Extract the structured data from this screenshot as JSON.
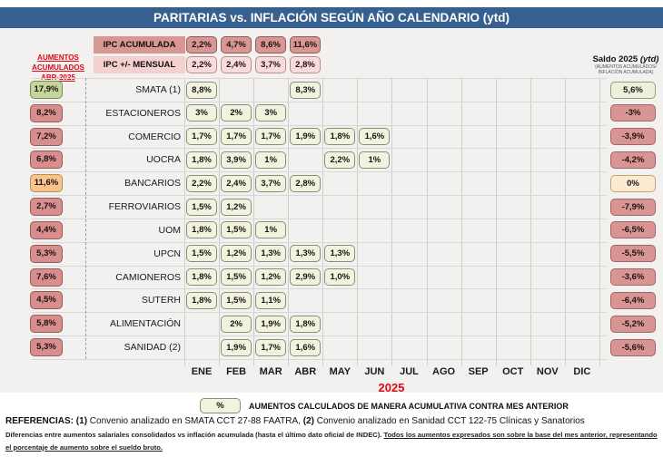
{
  "title": "PARITARIAS vs. INFLACIÓN SEGÚN AÑO CALENDARIO (ytd)",
  "left_header": {
    "line1": "AUMENTOS",
    "line2": "ACUMULADOS",
    "line3": "ABR-2025"
  },
  "ipc": {
    "acumulada": {
      "label": "IPC ACUMULADA",
      "values": [
        "2,2%",
        "4,7%",
        "8,6%",
        "11,6%"
      ]
    },
    "mensual": {
      "label": "IPC +/- MENSUAL",
      "values": [
        "2,2%",
        "2,4%",
        "3,7%",
        "2,8%"
      ]
    }
  },
  "saldo_header": {
    "title_main": "Saldo 2025",
    "title_suffix": "(ytd)",
    "subtitle1": "(AUMENTOS ACUMULADOS/",
    "subtitle2": "INFLACIÓN ACUMULADA)"
  },
  "months": [
    "ENE",
    "FEB",
    "MAR",
    "ABR",
    "MAY",
    "JUN",
    "JUL",
    "AGO",
    "SEP",
    "OCT",
    "NOV",
    "DIC"
  ],
  "year_label": "2025",
  "rows": [
    {
      "name": "SMATA (1)",
      "accum": "17,9%",
      "accum_color": "green",
      "months": [
        "8,8%",
        null,
        null,
        "8,3%",
        null,
        null,
        null,
        null,
        null,
        null,
        null,
        null
      ],
      "saldo": "5,6%",
      "saldo_color": "green"
    },
    {
      "name": "ESTACIONEROS",
      "accum": "8,2%",
      "accum_color": "red",
      "months": [
        "3%",
        "2%",
        "3%",
        null,
        null,
        null,
        null,
        null,
        null,
        null,
        null,
        null
      ],
      "saldo": "-3%",
      "saldo_color": "red"
    },
    {
      "name": "COMERCIO",
      "accum": "7,2%",
      "accum_color": "red",
      "months": [
        "1,7%",
        "1,7%",
        "1,7%",
        "1,9%",
        "1,8%",
        "1,6%",
        null,
        null,
        null,
        null,
        null,
        null
      ],
      "saldo": "-3,9%",
      "saldo_color": "red"
    },
    {
      "name": "UOCRA",
      "accum": "6,8%",
      "accum_color": "red",
      "months": [
        "1,8%",
        "3,9%",
        "1%",
        null,
        "2,2%",
        "1%",
        null,
        null,
        null,
        null,
        null,
        null
      ],
      "saldo": "-4,2%",
      "saldo_color": "red"
    },
    {
      "name": "BANCARIOS",
      "accum": "11,6%",
      "accum_color": "orange",
      "months": [
        "2,2%",
        "2,4%",
        "3,7%",
        "2,8%",
        null,
        null,
        null,
        null,
        null,
        null,
        null,
        null
      ],
      "saldo": "0%",
      "saldo_color": "cream"
    },
    {
      "name": "FERROVIARIOS",
      "accum": "2,7%",
      "accum_color": "red",
      "months": [
        "1,5%",
        "1,2%",
        null,
        null,
        null,
        null,
        null,
        null,
        null,
        null,
        null,
        null
      ],
      "saldo": "-7,9%",
      "saldo_color": "red"
    },
    {
      "name": "UOM",
      "accum": "4,4%",
      "accum_color": "red",
      "months": [
        "1,8%",
        "1,5%",
        "1%",
        null,
        null,
        null,
        null,
        null,
        null,
        null,
        null,
        null
      ],
      "saldo": "-6,5%",
      "saldo_color": "red"
    },
    {
      "name": "UPCN",
      "accum": "5,3%",
      "accum_color": "red",
      "months": [
        "1,5%",
        "1,2%",
        "1,3%",
        "1,3%",
        "1,3%",
        null,
        null,
        null,
        null,
        null,
        null,
        null
      ],
      "saldo": "-5,5%",
      "saldo_color": "red"
    },
    {
      "name": "CAMIONEROS",
      "accum": "7,6%",
      "accum_color": "red",
      "months": [
        "1,8%",
        "1,5%",
        "1,2%",
        "2,9%",
        "1,0%",
        null,
        null,
        null,
        null,
        null,
        null,
        null
      ],
      "saldo": "-3,6%",
      "saldo_color": "red"
    },
    {
      "name": "SUTERH",
      "accum": "4,5%",
      "accum_color": "red",
      "months": [
        "1,8%",
        "1,5%",
        "1,1%",
        null,
        null,
        null,
        null,
        null,
        null,
        null,
        null,
        null
      ],
      "saldo": "-6,4%",
      "saldo_color": "red"
    },
    {
      "name": "ALIMENTACIÓN",
      "accum": "5,8%",
      "accum_color": "red",
      "months": [
        null,
        "2%",
        "1,9%",
        "1,8%",
        null,
        null,
        null,
        null,
        null,
        null,
        null,
        null
      ],
      "saldo": "-5,2%",
      "saldo_color": "red"
    },
    {
      "name": "SANIDAD (2)",
      "accum": "5,3%",
      "accum_color": "red",
      "months": [
        null,
        "1,9%",
        "1,7%",
        "1,6%",
        null,
        null,
        null,
        null,
        null,
        null,
        null,
        null
      ],
      "saldo": "-5,6%",
      "saldo_color": "red"
    }
  ],
  "legend": {
    "symbol": "%",
    "text": "AUMENTOS CALCULADOS DE MANERA ACUMULATIVA CONTRA MES ANTERIOR"
  },
  "references": {
    "label": "REFERENCIAS:",
    "num1": "(1)",
    "part1": " Convenio analizado en SMATA CCT 27-88 FAATRA, ",
    "num2": "(2)",
    "part2": " Convenio analizado en Sanidad CCT 122-75 Clínicas y Sanatorios"
  },
  "fine_print": {
    "segment1": "Diferencias entre aumentos salariales consolidados vs inflación acumulada (hasta el último dato oficial de INDEC). ",
    "segment2": "Todos los aumentos expresados son sobre la base del mes anterior, representando el porcentaje de aumento sobre el sueldo bruto."
  },
  "colors": {
    "title_bar": "#35608f",
    "red_accent_text": "#e30613",
    "ipc_acumulada_chip": "#d89694",
    "ipc_mensual_chip": "#f7dcdb",
    "month_chip": "#f0f3de",
    "negative_chip": "#d88e8c",
    "positive_chip": "#c4d79b",
    "warning_chip": "#fac38b",
    "zero_chip": "#fbebd3"
  },
  "chart_data": {
    "type": "table",
    "title": "PARITARIAS vs. INFLACIÓN SEGÚN AÑO CALENDARIO (ytd)",
    "columns": [
      "ENE",
      "FEB",
      "MAR",
      "ABR",
      "MAY",
      "JUN",
      "JUL",
      "AGO",
      "SEP",
      "OCT",
      "NOV",
      "DIC"
    ],
    "ipc_acumulada_pct": [
      2.2,
      4.7,
      8.6,
      11.6
    ],
    "ipc_mensual_pct": [
      2.2,
      2.4,
      3.7,
      2.8
    ],
    "series": [
      {
        "name": "SMATA",
        "aumento_acumulado_abr2025_pct": 17.9,
        "monthly_pct": [
          8.8,
          null,
          null,
          8.3,
          null,
          null,
          null,
          null,
          null,
          null,
          null,
          null
        ],
        "saldo_2025_pct": 5.6
      },
      {
        "name": "ESTACIONEROS",
        "aumento_acumulado_abr2025_pct": 8.2,
        "monthly_pct": [
          3,
          2,
          3,
          null,
          null,
          null,
          null,
          null,
          null,
          null,
          null,
          null
        ],
        "saldo_2025_pct": -3
      },
      {
        "name": "COMERCIO",
        "aumento_acumulado_abr2025_pct": 7.2,
        "monthly_pct": [
          1.7,
          1.7,
          1.7,
          1.9,
          1.8,
          1.6,
          null,
          null,
          null,
          null,
          null,
          null
        ],
        "saldo_2025_pct": -3.9
      },
      {
        "name": "UOCRA",
        "aumento_acumulado_abr2025_pct": 6.8,
        "monthly_pct": [
          1.8,
          3.9,
          1,
          null,
          2.2,
          1,
          null,
          null,
          null,
          null,
          null,
          null
        ],
        "saldo_2025_pct": -4.2
      },
      {
        "name": "BANCARIOS",
        "aumento_acumulado_abr2025_pct": 11.6,
        "monthly_pct": [
          2.2,
          2.4,
          3.7,
          2.8,
          null,
          null,
          null,
          null,
          null,
          null,
          null,
          null
        ],
        "saldo_2025_pct": 0
      },
      {
        "name": "FERROVIARIOS",
        "aumento_acumulado_abr2025_pct": 2.7,
        "monthly_pct": [
          1.5,
          1.2,
          null,
          null,
          null,
          null,
          null,
          null,
          null,
          null,
          null,
          null
        ],
        "saldo_2025_pct": -7.9
      },
      {
        "name": "UOM",
        "aumento_acumulado_abr2025_pct": 4.4,
        "monthly_pct": [
          1.8,
          1.5,
          1,
          null,
          null,
          null,
          null,
          null,
          null,
          null,
          null,
          null
        ],
        "saldo_2025_pct": -6.5
      },
      {
        "name": "UPCN",
        "aumento_acumulado_abr2025_pct": 5.3,
        "monthly_pct": [
          1.5,
          1.2,
          1.3,
          1.3,
          1.3,
          null,
          null,
          null,
          null,
          null,
          null,
          null
        ],
        "saldo_2025_pct": -5.5
      },
      {
        "name": "CAMIONEROS",
        "aumento_acumulado_abr2025_pct": 7.6,
        "monthly_pct": [
          1.8,
          1.5,
          1.2,
          2.9,
          1.0,
          null,
          null,
          null,
          null,
          null,
          null,
          null
        ],
        "saldo_2025_pct": -3.6
      },
      {
        "name": "SUTERH",
        "aumento_acumulado_abr2025_pct": 4.5,
        "monthly_pct": [
          1.8,
          1.5,
          1.1,
          null,
          null,
          null,
          null,
          null,
          null,
          null,
          null,
          null
        ],
        "saldo_2025_pct": -6.4
      },
      {
        "name": "ALIMENTACIÓN",
        "aumento_acumulado_abr2025_pct": 5.8,
        "monthly_pct": [
          null,
          2,
          1.9,
          1.8,
          null,
          null,
          null,
          null,
          null,
          null,
          null,
          null
        ],
        "saldo_2025_pct": -5.2
      },
      {
        "name": "SANIDAD",
        "aumento_acumulado_abr2025_pct": 5.3,
        "monthly_pct": [
          null,
          1.9,
          1.7,
          1.6,
          null,
          null,
          null,
          null,
          null,
          null,
          null,
          null
        ],
        "saldo_2025_pct": -5.6
      }
    ]
  }
}
